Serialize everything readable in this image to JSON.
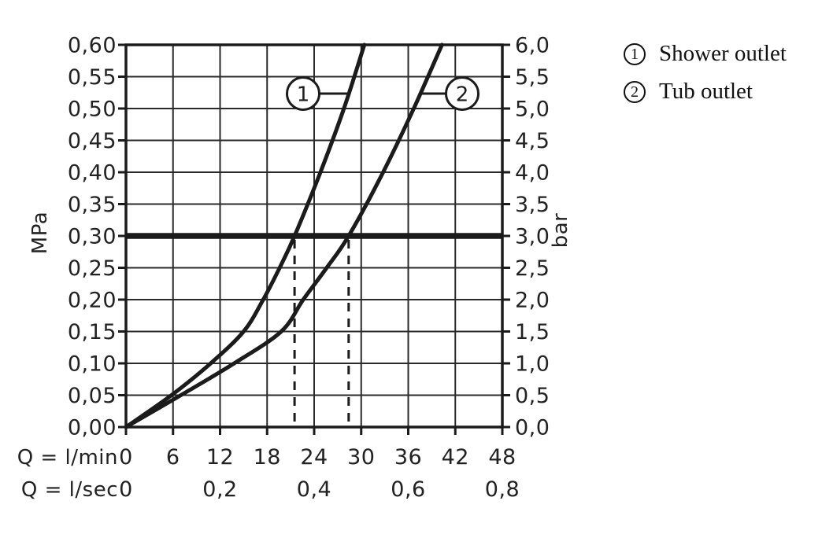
{
  "legend": {
    "items": [
      {
        "number": "1",
        "label": "Shower outlet"
      },
      {
        "number": "2",
        "label": "Tub outlet"
      }
    ]
  },
  "axes": {
    "left_unit": "MPa",
    "right_unit": "bar",
    "flow_min_label": "Q = l/min",
    "flow_sec_label": "Q = l/sec"
  },
  "chart_data": {
    "type": "line",
    "title": "",
    "xlabel": "Q = l/min",
    "xlabel_secondary": "Q = l/sec",
    "ylabel_left": "MPa",
    "ylabel_right": "bar",
    "xlim_lmin": [
      0,
      48
    ],
    "ylim_mpa": [
      0,
      0.6
    ],
    "ylim_bar": [
      0,
      6
    ],
    "grid": true,
    "x_ticks_lmin": [
      "0",
      "6",
      "12",
      "18",
      "24",
      "30",
      "36",
      "42",
      "48"
    ],
    "x_ticks_lmin_values": [
      0,
      6,
      12,
      18,
      24,
      30,
      36,
      42,
      48
    ],
    "x_ticks_lsec": [
      "0",
      "0,2",
      "0,4",
      "0,6",
      "0,8"
    ],
    "x_ticks_lsec_at_lmin": [
      0,
      12,
      24,
      36,
      48
    ],
    "y_ticks_mpa": [
      "0,60",
      "0,55",
      "0,50",
      "0,45",
      "0,40",
      "0,35",
      "0,30",
      "0,25",
      "0,20",
      "0,15",
      "0,10",
      "0,05",
      "0,00"
    ],
    "y_ticks_bar": [
      "6,0",
      "5,5",
      "5,0",
      "4,5",
      "4,0",
      "3,5",
      "3,0",
      "2,5",
      "2,0",
      "1,5",
      "1,0",
      "0,5",
      "0,0"
    ],
    "reference_line": {
      "mpa": 0.3,
      "bar": 3.0
    },
    "series": [
      {
        "name": "Shower outlet",
        "marker": "1",
        "points_q_lmin_vs_mpa": [
          [
            0,
            0
          ],
          [
            5.8,
            0.05
          ],
          [
            10.8,
            0.1
          ],
          [
            15.0,
            0.15
          ],
          [
            17.5,
            0.2
          ],
          [
            19.6,
            0.25
          ],
          [
            21.5,
            0.3
          ],
          [
            24.8,
            0.4
          ],
          [
            27.8,
            0.5
          ],
          [
            30.4,
            0.6
          ]
        ],
        "flow_at_3bar_lmin": 21.5
      },
      {
        "name": "Tub outlet",
        "marker": "2",
        "points_q_lmin_vs_mpa": [
          [
            0,
            0
          ],
          [
            7.0,
            0.05
          ],
          [
            13.8,
            0.1
          ],
          [
            19.8,
            0.15
          ],
          [
            22.6,
            0.2
          ],
          [
            25.6,
            0.25
          ],
          [
            28.4,
            0.3
          ],
          [
            32.8,
            0.4
          ],
          [
            36.7,
            0.5
          ],
          [
            40.3,
            0.6
          ]
        ],
        "flow_at_3bar_lmin": 28.4
      }
    ],
    "legend_position": "top-right"
  },
  "colors": {
    "ink": "#1b1b1b",
    "grid": "#2a2a2a",
    "background": "#ffffff"
  }
}
